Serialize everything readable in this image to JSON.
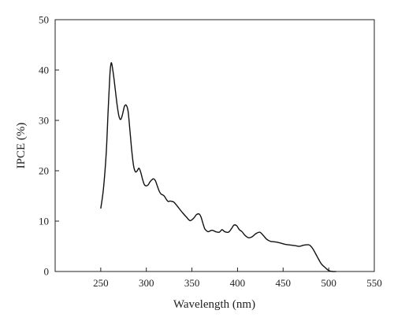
{
  "chart_data": {
    "type": "line",
    "title": "",
    "xlabel": "Wavelength (nm)",
    "ylabel": "IPCE (%)",
    "xlim": [
      200,
      550
    ],
    "ylim": [
      0,
      50
    ],
    "xticks": [
      250,
      300,
      350,
      400,
      450,
      500,
      550
    ],
    "yticks": [
      0,
      10,
      20,
      30,
      40,
      50
    ],
    "grid": false,
    "legend": "none",
    "series": [
      {
        "color": "#111111",
        "x": [
          250,
          253,
          256,
          258,
          260,
          261,
          262,
          264,
          266,
          268,
          270,
          272,
          274,
          276,
          278,
          280,
          282,
          284,
          286,
          288,
          290,
          292,
          294,
          296,
          298,
          300,
          302,
          304,
          306,
          308,
          310,
          312,
          314,
          316,
          318,
          320,
          322,
          324,
          326,
          328,
          330,
          333,
          336,
          340,
          344,
          348,
          352,
          355,
          358,
          360,
          362,
          364,
          366,
          368,
          372,
          376,
          380,
          383,
          386,
          390,
          393,
          396,
          399,
          402,
          405,
          408,
          412,
          416,
          420,
          424,
          426,
          429,
          432,
          436,
          440,
          444,
          448,
          452,
          456,
          460,
          464,
          468,
          472,
          476,
          478,
          480,
          483,
          486,
          489,
          492,
          496,
          500,
          504,
          508
        ],
        "y": [
          12.5,
          16.5,
          23.5,
          31.5,
          39.0,
          41.0,
          41.3,
          39.0,
          36.0,
          33.0,
          30.8,
          30.2,
          31.3,
          32.8,
          33.0,
          31.8,
          28.0,
          24.0,
          21.0,
          19.8,
          20.0,
          20.5,
          19.6,
          18.2,
          17.2,
          17.0,
          17.2,
          17.8,
          18.2,
          18.4,
          18.0,
          17.0,
          16.0,
          15.4,
          15.2,
          14.9,
          14.3,
          13.9,
          14.0,
          13.9,
          13.8,
          13.2,
          12.5,
          11.6,
          10.8,
          10.1,
          10.6,
          11.3,
          11.4,
          10.8,
          9.6,
          8.5,
          8.1,
          7.9,
          8.2,
          7.9,
          7.8,
          8.3,
          7.9,
          7.8,
          8.4,
          9.2,
          9.1,
          8.3,
          7.9,
          7.2,
          6.7,
          6.9,
          7.5,
          7.8,
          7.6,
          7.0,
          6.4,
          6.0,
          5.9,
          5.8,
          5.6,
          5.4,
          5.3,
          5.2,
          5.1,
          5.0,
          5.2,
          5.3,
          5.3,
          5.1,
          4.4,
          3.4,
          2.4,
          1.5,
          0.8,
          0.2,
          0.0,
          0.0
        ]
      }
    ]
  }
}
